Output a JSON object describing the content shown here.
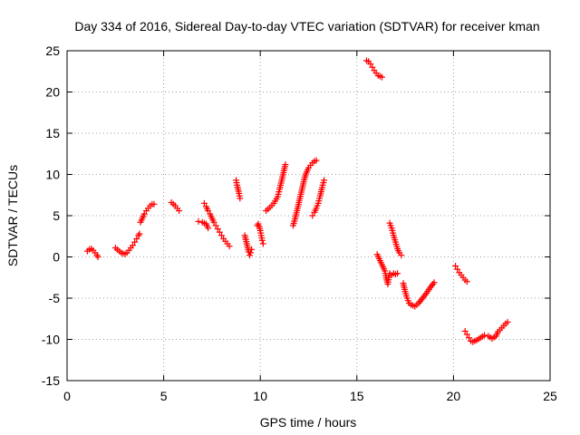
{
  "chart_data": {
    "type": "scatter",
    "title": "Day 334 of 2016, Sidereal Day-to-day VTEC variation (SDTVAR) for receiver kman",
    "xlabel": "GPS time / hours",
    "ylabel": "SDTVAR / TECUs",
    "xlim": [
      0,
      25
    ],
    "ylim": [
      -15,
      25
    ],
    "xticks": [
      "0",
      "5",
      "10",
      "15",
      "20",
      "25"
    ],
    "yticks": [
      "25",
      "20",
      "15",
      "10",
      "5",
      "0",
      "-5",
      "-10",
      "-15"
    ],
    "grid": true,
    "marker": "+",
    "color": "#ff0000",
    "segments": [
      [
        [
          1.05,
          0.7
        ],
        [
          1.15,
          0.9
        ],
        [
          1.25,
          1.0
        ],
        [
          1.35,
          0.8
        ],
        [
          1.45,
          0.5
        ],
        [
          1.55,
          0.2
        ],
        [
          1.6,
          0.0
        ]
      ],
      [
        [
          2.5,
          1.1
        ],
        [
          2.6,
          0.9
        ],
        [
          2.7,
          0.7
        ],
        [
          2.8,
          0.5
        ],
        [
          2.9,
          0.4
        ],
        [
          3.0,
          0.35
        ],
        [
          3.1,
          0.5
        ],
        [
          3.2,
          0.8
        ],
        [
          3.3,
          1.1
        ],
        [
          3.4,
          1.4
        ],
        [
          3.5,
          1.8
        ],
        [
          3.6,
          2.2
        ],
        [
          3.7,
          2.6
        ],
        [
          3.75,
          2.8
        ]
      ],
      [
        [
          3.8,
          4.2
        ],
        [
          3.9,
          4.7
        ],
        [
          4.0,
          5.2
        ],
        [
          4.1,
          5.6
        ],
        [
          4.2,
          5.9
        ],
        [
          4.3,
          6.2
        ],
        [
          4.4,
          6.4
        ],
        [
          4.5,
          6.4
        ]
      ],
      [
        [
          5.4,
          6.6
        ],
        [
          5.5,
          6.4
        ],
        [
          5.6,
          6.2
        ],
        [
          5.7,
          5.9
        ],
        [
          5.8,
          5.6
        ]
      ],
      [
        [
          6.8,
          4.3
        ],
        [
          7.0,
          4.2
        ],
        [
          7.2,
          4.0
        ],
        [
          7.3,
          3.5
        ]
      ],
      [
        [
          7.1,
          6.5
        ],
        [
          7.2,
          6.1
        ],
        [
          7.3,
          5.6
        ],
        [
          7.4,
          5.2
        ],
        [
          7.5,
          4.7
        ],
        [
          7.6,
          4.2
        ],
        [
          7.7,
          3.8
        ],
        [
          7.8,
          3.4
        ],
        [
          7.9,
          3.0
        ],
        [
          8.0,
          2.6
        ],
        [
          8.1,
          2.2
        ],
        [
          8.2,
          1.9
        ],
        [
          8.3,
          1.6
        ],
        [
          8.4,
          1.3
        ]
      ],
      [
        [
          8.75,
          9.3
        ],
        [
          8.8,
          8.7
        ],
        [
          8.85,
          8.2
        ],
        [
          8.9,
          7.7
        ],
        [
          8.95,
          7.1
        ]
      ],
      [
        [
          9.2,
          2.6
        ],
        [
          9.25,
          2.1
        ],
        [
          9.3,
          1.6
        ],
        [
          9.35,
          1.1
        ],
        [
          9.4,
          0.6
        ],
        [
          9.45,
          0.2
        ],
        [
          9.5,
          0.5
        ],
        [
          9.55,
          0.9
        ]
      ],
      [
        [
          9.85,
          3.8
        ],
        [
          9.9,
          4.0
        ],
        [
          9.95,
          3.7
        ],
        [
          10.0,
          3.2
        ],
        [
          10.05,
          2.6
        ],
        [
          10.1,
          2.0
        ],
        [
          10.15,
          1.6
        ]
      ],
      [
        [
          10.3,
          5.6
        ],
        [
          10.5,
          6.0
        ],
        [
          10.7,
          6.5
        ],
        [
          10.9,
          7.3
        ],
        [
          11.0,
          8.2
        ],
        [
          11.1,
          9.2
        ],
        [
          11.2,
          10.2
        ],
        [
          11.3,
          11.2
        ]
      ],
      [
        [
          11.7,
          3.8
        ],
        [
          11.8,
          4.6
        ],
        [
          11.9,
          5.6
        ],
        [
          12.0,
          6.6
        ],
        [
          12.1,
          7.6
        ],
        [
          12.2,
          8.6
        ],
        [
          12.3,
          9.6
        ],
        [
          12.4,
          10.3
        ],
        [
          12.5,
          10.8
        ],
        [
          12.6,
          11.1
        ],
        [
          12.7,
          11.4
        ],
        [
          12.8,
          11.6
        ],
        [
          12.9,
          11.7
        ]
      ],
      [
        [
          12.7,
          5.0
        ],
        [
          12.8,
          5.4
        ],
        [
          12.9,
          5.9
        ],
        [
          13.0,
          6.5
        ],
        [
          13.1,
          7.4
        ],
        [
          13.2,
          8.4
        ],
        [
          13.3,
          9.3
        ]
      ],
      [
        [
          15.5,
          23.8
        ],
        [
          15.6,
          23.7
        ],
        [
          15.7,
          23.4
        ],
        [
          15.8,
          23.0
        ],
        [
          15.9,
          22.6
        ],
        [
          16.0,
          22.3
        ],
        [
          16.1,
          22.0
        ],
        [
          16.2,
          21.9
        ],
        [
          16.3,
          21.8
        ]
      ],
      [
        [
          16.05,
          0.3
        ],
        [
          16.15,
          -0.2
        ],
        [
          16.25,
          -0.7
        ],
        [
          16.35,
          -1.2
        ],
        [
          16.45,
          -1.7
        ],
        [
          16.5,
          -2.3
        ],
        [
          16.55,
          -2.8
        ],
        [
          16.6,
          -3.3
        ],
        [
          16.65,
          -2.5
        ],
        [
          16.7,
          -2.0
        ],
        [
          16.8,
          -2.2
        ],
        [
          16.9,
          -2.0
        ],
        [
          17.0,
          -2.1
        ],
        [
          17.1,
          -2.0
        ]
      ],
      [
        [
          16.7,
          4.1
        ],
        [
          16.8,
          3.5
        ],
        [
          16.9,
          2.6
        ],
        [
          17.0,
          1.8
        ],
        [
          17.1,
          1.0
        ],
        [
          17.2,
          0.5
        ],
        [
          17.3,
          0.2
        ]
      ],
      [
        [
          17.4,
          -3.2
        ],
        [
          17.5,
          -4.2
        ],
        [
          17.6,
          -5.0
        ],
        [
          17.7,
          -5.6
        ],
        [
          17.8,
          -5.8
        ],
        [
          17.9,
          -5.9
        ],
        [
          18.0,
          -6.0
        ],
        [
          18.2,
          -5.6
        ],
        [
          18.4,
          -5.0
        ],
        [
          18.6,
          -4.4
        ],
        [
          18.8,
          -3.7
        ],
        [
          19.0,
          -3.1
        ]
      ],
      [
        [
          20.1,
          -1.1
        ],
        [
          20.2,
          -1.5
        ],
        [
          20.3,
          -1.9
        ],
        [
          20.4,
          -2.2
        ],
        [
          20.5,
          -2.5
        ],
        [
          20.6,
          -2.8
        ],
        [
          20.7,
          -3.0
        ]
      ],
      [
        [
          20.6,
          -9.0
        ],
        [
          20.7,
          -9.4
        ],
        [
          20.8,
          -9.8
        ],
        [
          20.9,
          -10.2
        ],
        [
          21.0,
          -10.3
        ],
        [
          21.2,
          -10.1
        ],
        [
          21.4,
          -9.8
        ],
        [
          21.6,
          -9.5
        ],
        [
          21.8,
          -9.6
        ],
        [
          22.0,
          -9.9
        ],
        [
          22.2,
          -9.6
        ],
        [
          22.3,
          -9.1
        ],
        [
          22.5,
          -8.6
        ],
        [
          22.7,
          -8.1
        ],
        [
          22.8,
          -7.9
        ]
      ]
    ]
  }
}
